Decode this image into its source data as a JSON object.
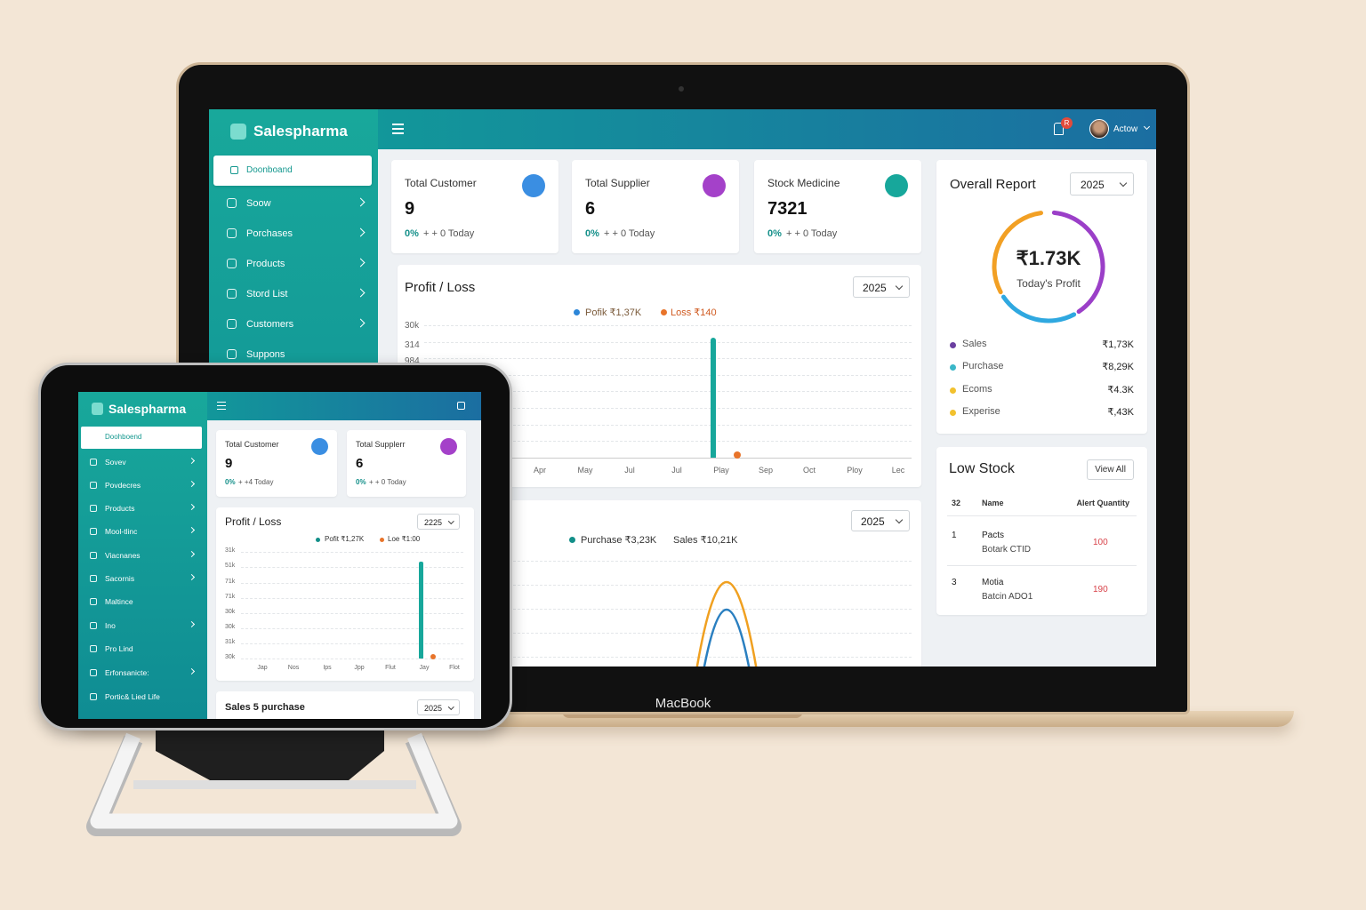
{
  "laptop": {
    "brand": "Salespharma",
    "nav": [
      "Doonboand",
      "Soow",
      "Porchases",
      "Products",
      "Stord List",
      "Customers",
      "Suppons"
    ],
    "notification_badge": "R",
    "user": "Actow",
    "stats": [
      {
        "label": "Total Customer",
        "value": 9,
        "change": "0%",
        "note": "+ + 0 Today"
      },
      {
        "label": "Total Supplier",
        "value": 6,
        "change": "0%",
        "note": "+ + 0 Today"
      },
      {
        "label": "Stock Medicine",
        "value": 7321,
        "change": "0%",
        "note": "+ + 0 Today"
      }
    ],
    "profit_loss": {
      "title": "Profit / Loss",
      "year": "2025",
      "legend": [
        "Pofik ₹1,37K",
        "Loss ₹140"
      ],
      "y_labels": [
        "30k",
        "314",
        "984"
      ],
      "x_labels": [
        "Apr",
        "May",
        "Jul",
        "Jul",
        "Play",
        "Sep",
        "Oct",
        "Ploy",
        "Lec"
      ]
    },
    "sales_purchase": {
      "year": "2025",
      "legend": [
        "Purchase ₹3,23K",
        "Sales ₹10,21K"
      ]
    },
    "overall_report": {
      "title": "Overall Report",
      "year": "2025",
      "value": "₹1.73K",
      "caption": "Today's Profit",
      "rows": [
        {
          "label": "Sales",
          "value": "₹1,73K"
        },
        {
          "label": "Purchase",
          "value": "₹8,29K"
        },
        {
          "label": "Ecoms",
          "value": "₹4.3K"
        },
        {
          "label": "Experise",
          "value": "₹,43K"
        }
      ]
    },
    "low_stock": {
      "title": "Low Stock",
      "button": "View All",
      "headers": [
        32,
        "Name",
        "Alert Quantity"
      ],
      "rows": [
        {
          "id": 1,
          "name": "Pacts",
          "batch": "Botark CTID",
          "qty": 100
        },
        {
          "id": 3,
          "name": "Motia",
          "batch": "Batcin ADO1",
          "qty": 190
        }
      ]
    },
    "model": "MacBook"
  },
  "tablet": {
    "brand": "Salespharma",
    "nav": [
      "Doohboend",
      "Sovev",
      "Povdecres",
      "Products",
      "Mool-tlinc",
      "Viacnanes",
      "Sacornis",
      "Maltince",
      "Ino",
      "Pro Lind",
      "Erfonsanicte:",
      "Portic& Lied Life"
    ],
    "stats": [
      {
        "label": "Total Customer",
        "value": 9,
        "change": "0%",
        "note": "+ +4 Today"
      },
      {
        "label": "Total Supplerr",
        "value": 6,
        "change": "0%",
        "note": "+ + 0 Today"
      }
    ],
    "profit_loss": {
      "title": "Profit / Loss",
      "year": "2225",
      "legend": [
        "Pofit ₹1,27K",
        "Loe ₹1:00"
      ],
      "y_labels": [
        "31k",
        "51k",
        "71k",
        "71k",
        "30k",
        "30k",
        "31k",
        "30k"
      ],
      "x_labels": [
        "Jap",
        "Nos",
        "Ips",
        "Jpp",
        "Flut",
        "Jay",
        "Flot"
      ]
    },
    "sales_purchase": {
      "title": "Sales 5 purchase",
      "year": "2025"
    }
  }
}
